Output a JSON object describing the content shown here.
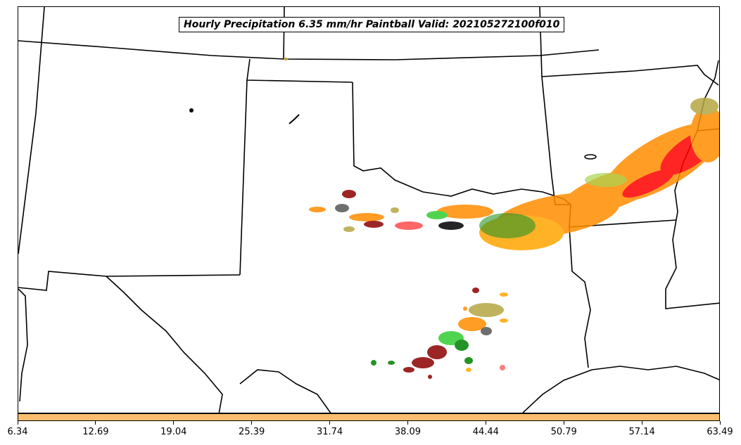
{
  "title": "Hourly Precipitation 6.35 mm/hr Paintball Valid: 202105272100f010",
  "colorbar": {
    "color": "#fdbf6f",
    "ticks": [
      "6.34",
      "12.69",
      "19.04",
      "25.39",
      "31.74",
      "38.09",
      "44.44",
      "50.79",
      "57.14",
      "63.49"
    ]
  },
  "ensemble_colors": [
    "#000000",
    "#8b0000",
    "#ff0000",
    "#ff8c00",
    "#ffa500",
    "#008000",
    "#32cd32",
    "#9acd32",
    "#b5a642",
    "#555555"
  ]
}
